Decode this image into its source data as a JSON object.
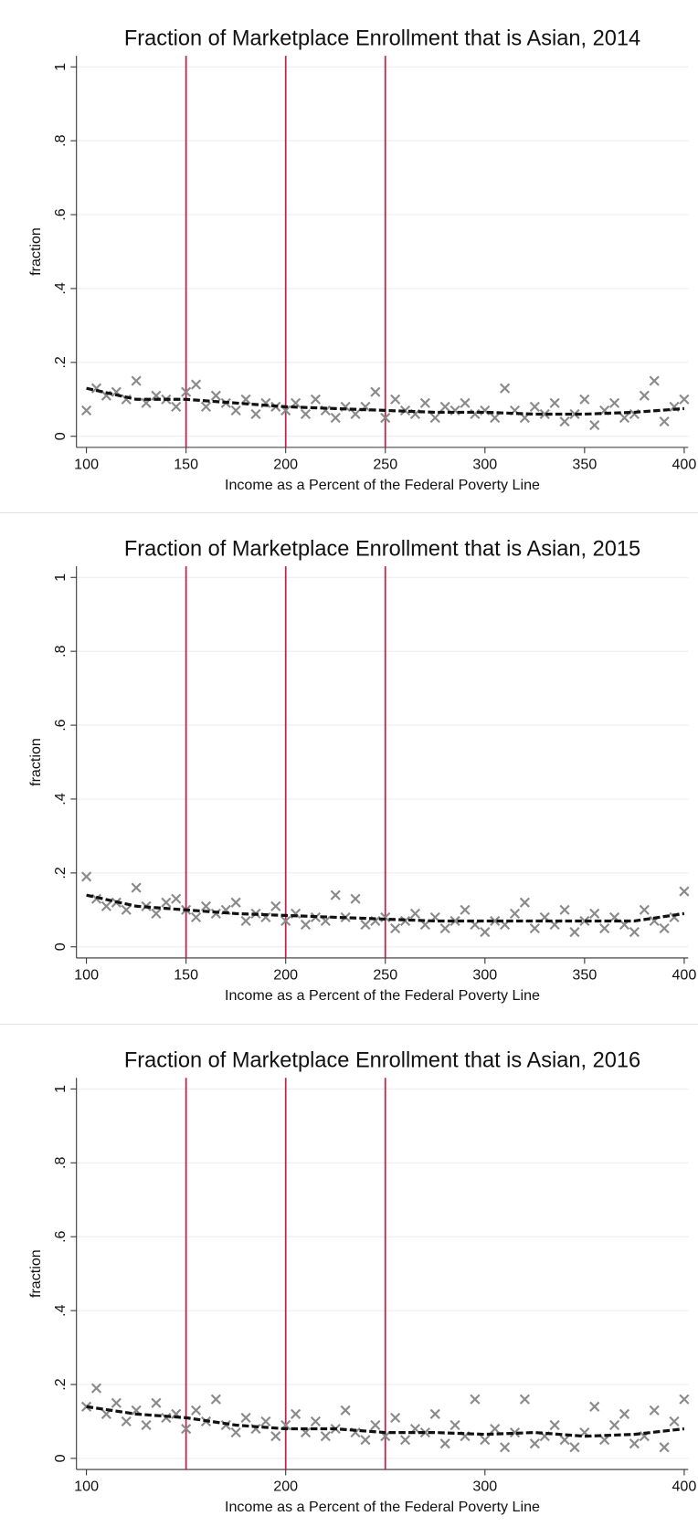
{
  "chart_data": [
    {
      "type": "scatter",
      "title": "Fraction of Marketplace Enrollment that is Asian, 2014",
      "xlabel": "Income as a Percent of the Federal Poverty Line",
      "ylabel": "fraction",
      "xlim": [
        95,
        402
      ],
      "ylim": [
        -0.03,
        1.03
      ],
      "xticks": [
        100,
        150,
        200,
        250,
        300,
        350,
        400
      ],
      "yticks": [
        0,
        {
          "value": 0.2,
          "label": ".2"
        },
        {
          "value": 0.4,
          "label": ".4"
        },
        {
          "value": 0.6,
          "label": ".6"
        },
        {
          "value": 0.8,
          "label": ".8"
        },
        1
      ],
      "grid": true,
      "vlines": [
        150,
        200,
        250
      ],
      "vline_color": "#c41e4a",
      "series": [
        {
          "marker": "x",
          "color": "#8a8a8a",
          "x": [
            100,
            105,
            110,
            115,
            120,
            125,
            130,
            135,
            140,
            145,
            150,
            155,
            160,
            165,
            170,
            175,
            180,
            185,
            190,
            195,
            200,
            205,
            210,
            215,
            220,
            225,
            230,
            235,
            240,
            245,
            250,
            255,
            260,
            265,
            270,
            275,
            280,
            285,
            290,
            295,
            300,
            305,
            310,
            315,
            320,
            325,
            330,
            335,
            340,
            345,
            350,
            355,
            360,
            365,
            370,
            375,
            380,
            385,
            390,
            395,
            400
          ],
          "values": [
            0.07,
            0.13,
            0.11,
            0.12,
            0.1,
            0.15,
            0.09,
            0.11,
            0.1,
            0.08,
            0.12,
            0.14,
            0.08,
            0.11,
            0.09,
            0.07,
            0.1,
            0.06,
            0.09,
            0.08,
            0.07,
            0.09,
            0.06,
            0.1,
            0.07,
            0.05,
            0.08,
            0.06,
            0.08,
            0.12,
            0.05,
            0.1,
            0.07,
            0.06,
            0.09,
            0.05,
            0.08,
            0.07,
            0.09,
            0.06,
            0.07,
            0.05,
            0.13,
            0.07,
            0.05,
            0.08,
            0.06,
            0.09,
            0.04,
            0.06,
            0.1,
            0.03,
            0.07,
            0.09,
            0.05,
            0.06,
            0.11,
            0.15,
            0.04,
            0.08,
            0.1
          ]
        },
        {
          "marker": "dashed-line",
          "color": "#111111",
          "x": [
            100,
            125,
            150,
            175,
            200,
            225,
            250,
            275,
            300,
            325,
            350,
            375,
            400
          ],
          "values": [
            0.13,
            0.1,
            0.1,
            0.09,
            0.08,
            0.075,
            0.07,
            0.065,
            0.065,
            0.06,
            0.06,
            0.065,
            0.075
          ]
        }
      ]
    },
    {
      "type": "scatter",
      "title": "Fraction of Marketplace Enrollment that is Asian, 2015",
      "xlabel": "Income as a Percent of the Federal Poverty Line",
      "ylabel": "fraction",
      "xlim": [
        95,
        402
      ],
      "ylim": [
        -0.03,
        1.03
      ],
      "xticks": [
        100,
        150,
        200,
        250,
        300,
        350,
        400
      ],
      "yticks": [
        0,
        {
          "value": 0.2,
          "label": ".2"
        },
        {
          "value": 0.4,
          "label": ".4"
        },
        {
          "value": 0.6,
          "label": ".6"
        },
        {
          "value": 0.8,
          "label": ".8"
        },
        1
      ],
      "grid": true,
      "vlines": [
        150,
        200,
        250
      ],
      "vline_color": "#c41e4a",
      "series": [
        {
          "marker": "x",
          "color": "#8a8a8a",
          "x": [
            100,
            105,
            110,
            115,
            120,
            125,
            130,
            135,
            140,
            145,
            150,
            155,
            160,
            165,
            170,
            175,
            180,
            185,
            190,
            195,
            200,
            205,
            210,
            215,
            220,
            225,
            230,
            235,
            240,
            245,
            250,
            255,
            260,
            265,
            270,
            275,
            280,
            285,
            290,
            295,
            300,
            305,
            310,
            315,
            320,
            325,
            330,
            335,
            340,
            345,
            350,
            355,
            360,
            365,
            370,
            375,
            380,
            385,
            390,
            395,
            400
          ],
          "values": [
            0.19,
            0.13,
            0.11,
            0.12,
            0.1,
            0.16,
            0.11,
            0.09,
            0.12,
            0.13,
            0.1,
            0.08,
            0.11,
            0.09,
            0.1,
            0.12,
            0.07,
            0.09,
            0.08,
            0.11,
            0.07,
            0.09,
            0.06,
            0.08,
            0.07,
            0.14,
            0.08,
            0.13,
            0.06,
            0.07,
            0.08,
            0.05,
            0.07,
            0.09,
            0.06,
            0.08,
            0.05,
            0.07,
            0.1,
            0.06,
            0.04,
            0.07,
            0.06,
            0.09,
            0.12,
            0.05,
            0.08,
            0.06,
            0.1,
            0.04,
            0.07,
            0.09,
            0.05,
            0.08,
            0.06,
            0.04,
            0.1,
            0.07,
            0.05,
            0.08,
            0.15
          ]
        },
        {
          "marker": "dashed-line",
          "color": "#111111",
          "x": [
            100,
            125,
            150,
            175,
            200,
            225,
            250,
            275,
            300,
            325,
            350,
            375,
            400
          ],
          "values": [
            0.14,
            0.11,
            0.1,
            0.09,
            0.085,
            0.08,
            0.075,
            0.07,
            0.07,
            0.07,
            0.07,
            0.07,
            0.09
          ]
        }
      ]
    },
    {
      "type": "scatter",
      "title": "Fraction of Marketplace Enrollment that is Asian, 2016",
      "xlabel": "Income as a Percent of the Federal Poverty Line",
      "ylabel": "fraction",
      "xlim": [
        95,
        402
      ],
      "ylim": [
        -0.03,
        1.03
      ],
      "xticks": [
        100,
        200,
        300,
        400
      ],
      "yticks": [
        0,
        {
          "value": 0.2,
          "label": ".2"
        },
        {
          "value": 0.4,
          "label": ".4"
        },
        {
          "value": 0.6,
          "label": ".6"
        },
        {
          "value": 0.8,
          "label": ".8"
        },
        1
      ],
      "grid": true,
      "vlines": [
        150,
        200,
        250
      ],
      "vline_color": "#c41e4a",
      "series": [
        {
          "marker": "x",
          "color": "#8a8a8a",
          "x": [
            100,
            105,
            110,
            115,
            120,
            125,
            130,
            135,
            140,
            145,
            150,
            155,
            160,
            165,
            170,
            175,
            180,
            185,
            190,
            195,
            200,
            205,
            210,
            215,
            220,
            225,
            230,
            235,
            240,
            245,
            250,
            255,
            260,
            265,
            270,
            275,
            280,
            285,
            290,
            295,
            300,
            305,
            310,
            315,
            320,
            325,
            330,
            335,
            340,
            345,
            350,
            355,
            360,
            365,
            370,
            375,
            380,
            385,
            390,
            395,
            400
          ],
          "values": [
            0.14,
            0.19,
            0.12,
            0.15,
            0.1,
            0.13,
            0.09,
            0.15,
            0.11,
            0.12,
            0.08,
            0.13,
            0.1,
            0.16,
            0.09,
            0.07,
            0.11,
            0.08,
            0.1,
            0.06,
            0.09,
            0.12,
            0.07,
            0.1,
            0.06,
            0.08,
            0.13,
            0.07,
            0.05,
            0.09,
            0.06,
            0.11,
            0.05,
            0.08,
            0.07,
            0.12,
            0.04,
            0.09,
            0.06,
            0.16,
            0.05,
            0.08,
            0.03,
            0.07,
            0.16,
            0.04,
            0.06,
            0.09,
            0.05,
            0.03,
            0.07,
            0.14,
            0.05,
            0.09,
            0.12,
            0.04,
            0.06,
            0.13,
            0.03,
            0.1,
            0.16
          ]
        },
        {
          "marker": "dashed-line",
          "color": "#111111",
          "x": [
            100,
            125,
            150,
            175,
            200,
            225,
            250,
            275,
            300,
            325,
            350,
            375,
            400
          ],
          "values": [
            0.14,
            0.12,
            0.11,
            0.09,
            0.08,
            0.08,
            0.07,
            0.07,
            0.065,
            0.07,
            0.06,
            0.065,
            0.08
          ]
        }
      ]
    }
  ]
}
